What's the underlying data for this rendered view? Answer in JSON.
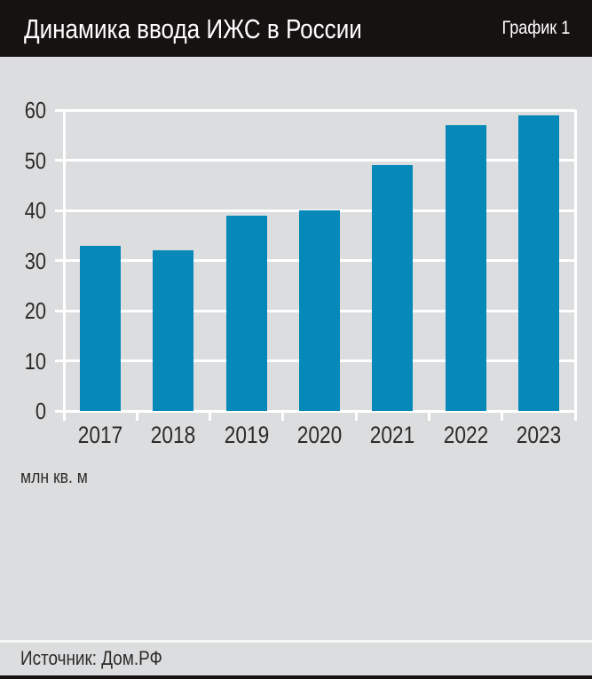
{
  "header": {
    "title": "Динамика ввода ИЖС в России",
    "tag": "График 1"
  },
  "chart_data": {
    "type": "bar",
    "title": "Динамика ввода ИЖС в России",
    "categories": [
      "2017",
      "2018",
      "2019",
      "2020",
      "2021",
      "2022",
      "2023"
    ],
    "values": [
      33,
      32,
      39,
      40,
      49,
      57,
      59
    ],
    "xlabel": "",
    "ylabel": "млн кв. м",
    "ylim": [
      0,
      60
    ],
    "yticks": [
      0,
      10,
      20,
      30,
      40,
      50,
      60
    ],
    "grid": true,
    "legend": false,
    "bar_color": "#0689b8",
    "plot_background": "#dcddde",
    "gridline_color": "#ffffff"
  },
  "footer": {
    "source": "Источник: Дом.РФ"
  },
  "colors": {
    "header_bg": "#171212",
    "page_bg": "#dcddde",
    "bar": "#0689b8",
    "grid": "#ffffff",
    "text": "#2d2b29",
    "header_text": "#ffffff"
  }
}
